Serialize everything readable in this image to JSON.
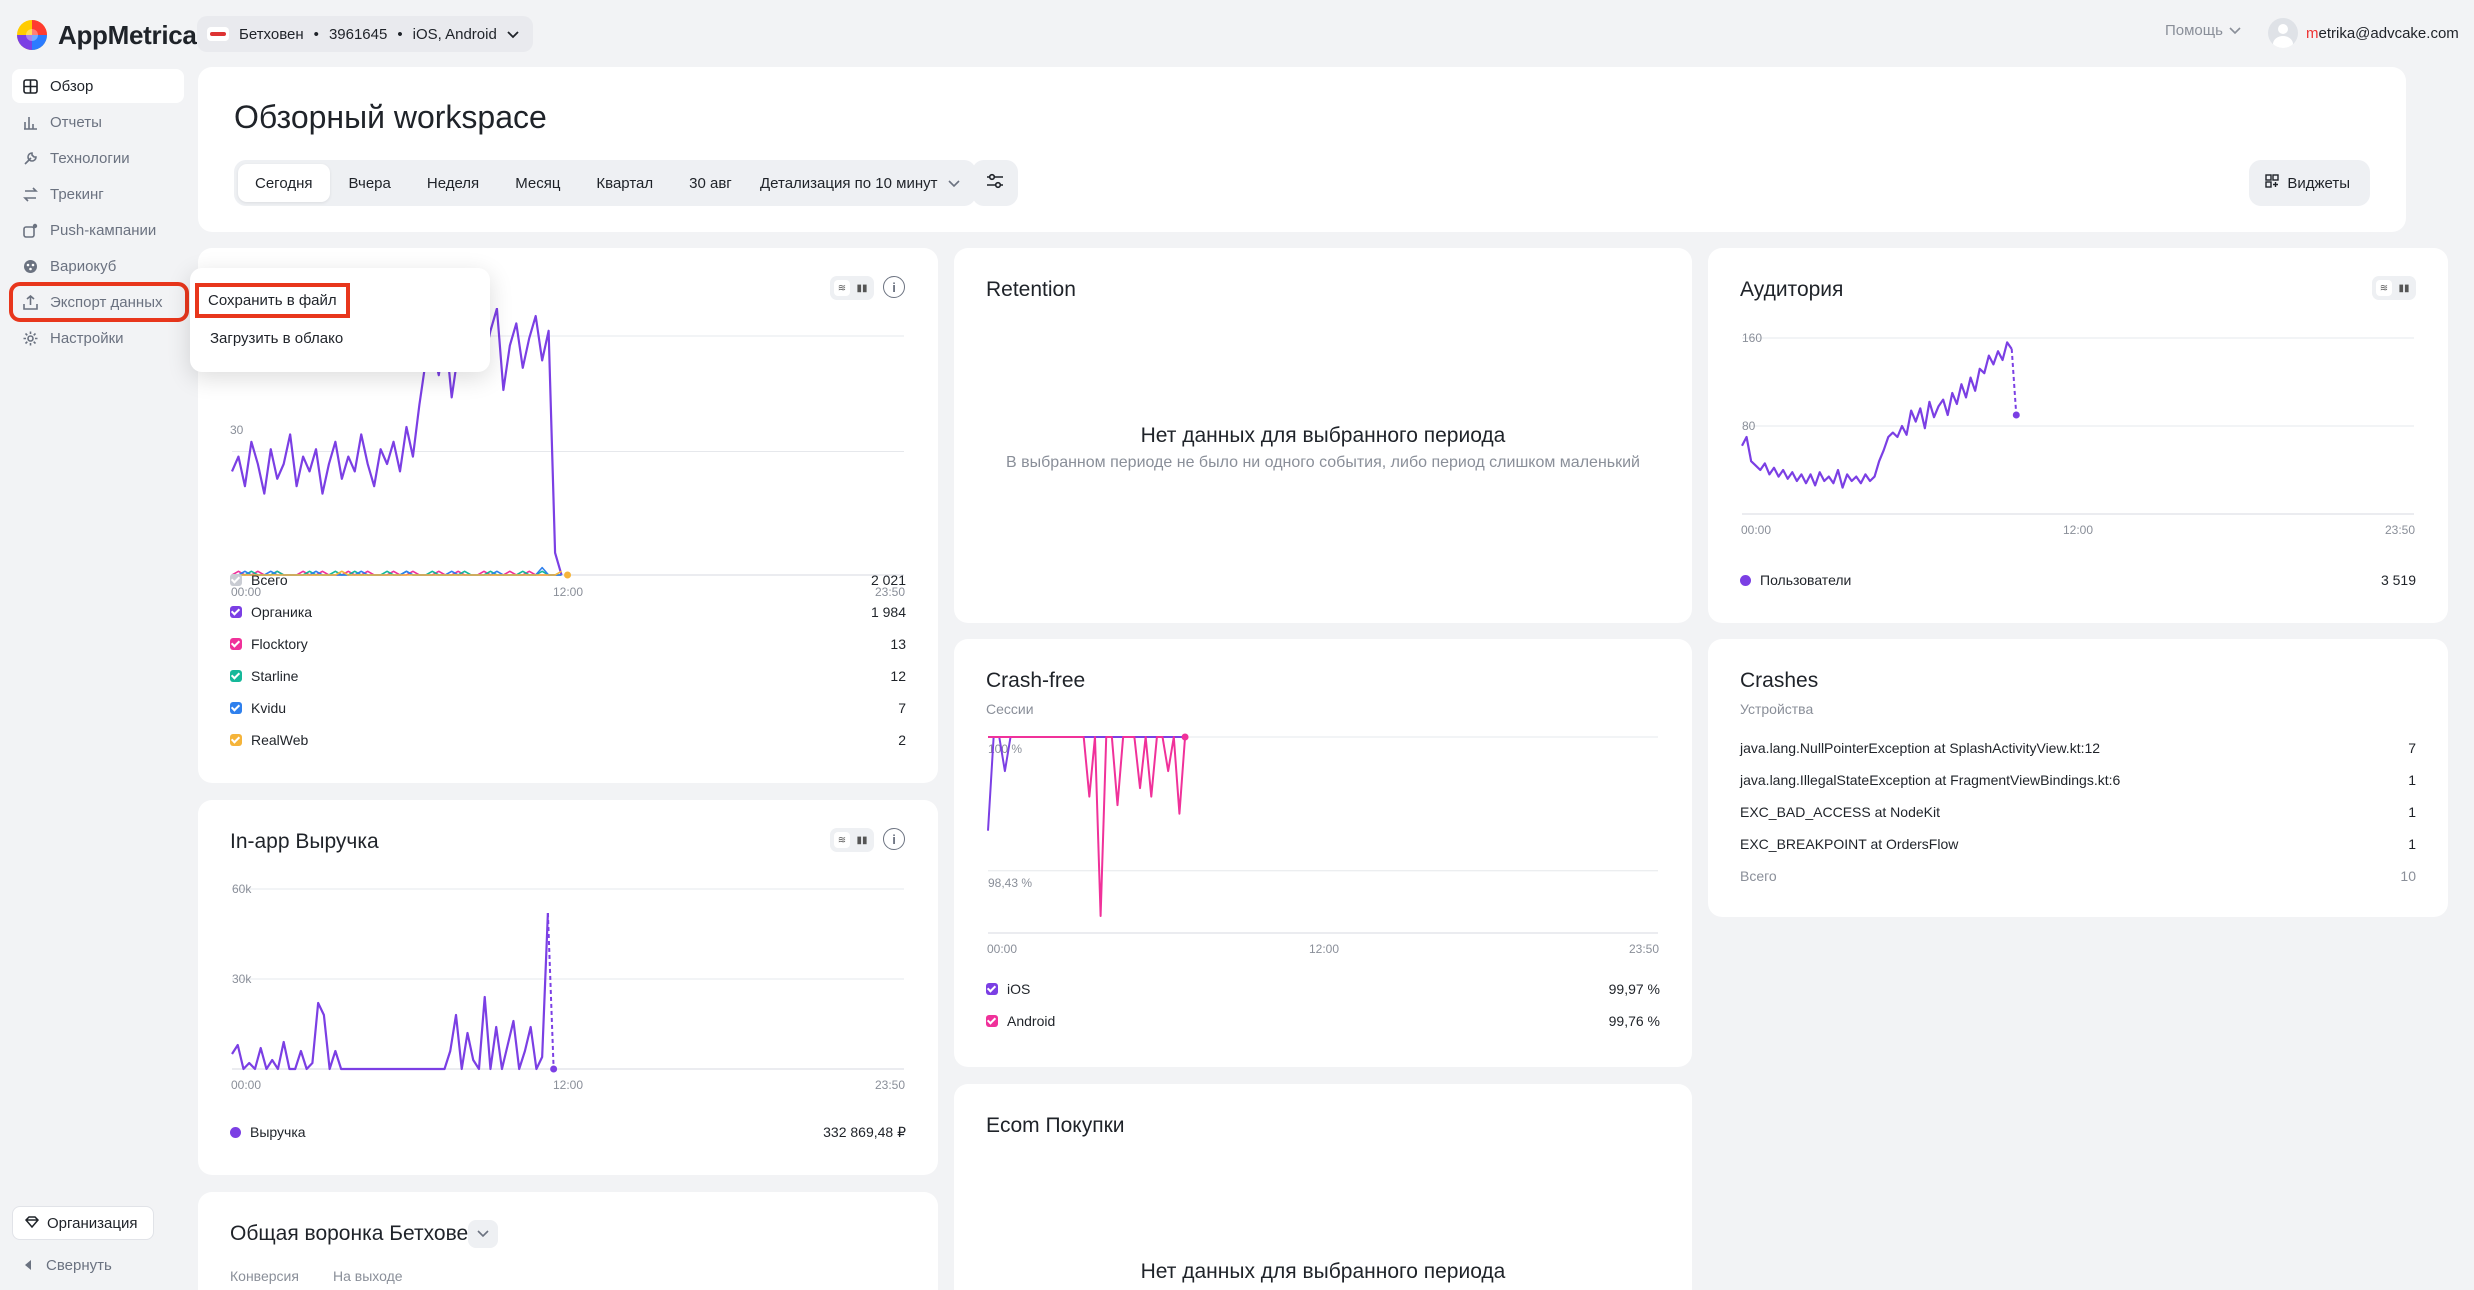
{
  "app": {
    "logo_text": "AppMetrica",
    "app_name": "Бетховен",
    "app_id": "3961645",
    "platforms": "iOS, Android",
    "help_label": "Помощь",
    "user_email_first": "m",
    "user_email_rest": "etrika@advcake.com"
  },
  "sidebar": {
    "items": [
      {
        "label": "Обзор",
        "icon": "grid-icon"
      },
      {
        "label": "Отчеты",
        "icon": "bar-chart-icon"
      },
      {
        "label": "Технологии",
        "icon": "wrench-icon"
      },
      {
        "label": "Трекинг",
        "icon": "arrows-icon"
      },
      {
        "label": "Push-кампании",
        "icon": "push-icon"
      },
      {
        "label": "Вариокуб",
        "icon": "cube-icon"
      },
      {
        "label": "Экспорт данных",
        "icon": "export-icon"
      },
      {
        "label": "Настройки",
        "icon": "gear-icon"
      }
    ],
    "org_label": "Организация",
    "collapse_label": "Свернуть"
  },
  "export_menu": {
    "save_file": "Сохранить в файл",
    "load_cloud": "Загрузить в облако"
  },
  "header": {
    "title": "Обзорный workspace",
    "periods": [
      "Сегодня",
      "Вчера",
      "Неделя",
      "Месяц",
      "Квартал",
      "30 авг"
    ],
    "selected_period": "Сегодня",
    "detail": "Детализация по 10 минут",
    "widgets_label": "Виджеты"
  },
  "installs_card": {
    "x_ticks": [
      "00:00",
      "12:00",
      "23:50"
    ],
    "y_tick": "30",
    "legend": [
      {
        "label": "Всего",
        "value": "2 021",
        "color": "#c9ccd3"
      },
      {
        "label": "Органика",
        "value": "1 984",
        "color": "#7b3fe4"
      },
      {
        "label": "Flocktory",
        "value": "13",
        "color": "#f0319a"
      },
      {
        "label": "Starline",
        "value": "12",
        "color": "#16b89a"
      },
      {
        "label": "Kvidu",
        "value": "7",
        "color": "#2f80ed"
      },
      {
        "label": "RealWeb",
        "value": "2",
        "color": "#f5b43a"
      }
    ]
  },
  "revenue_card": {
    "title": "In-app Выручка",
    "y_ticks": [
      "60k",
      "30k"
    ],
    "x_ticks": [
      "00:00",
      "12:00",
      "23:50"
    ],
    "legend_label": "Выручка",
    "legend_value": "332 869,48 ₽",
    "color": "#7b3fe4"
  },
  "funnel_card": {
    "title": "Общая воронка Бетховен",
    "col1": "Конверсия",
    "col2": "На выходе"
  },
  "retention_card": {
    "title": "Retention",
    "nodata_title": "Нет данных для выбранного периода",
    "nodata_sub": "В выбранном периоде не было ни одного события, либо период слишком маленький"
  },
  "crashfree_card": {
    "title": "Crash-free",
    "subtitle": "Сессии",
    "y_ticks": [
      "100 %",
      "98,43 %"
    ],
    "x_ticks": [
      "00:00",
      "12:00",
      "23:50"
    ],
    "legend": [
      {
        "label": "iOS",
        "value": "99,97 %",
        "color": "#7b3fe4"
      },
      {
        "label": "Android",
        "value": "99,76 %",
        "color": "#f0319a"
      }
    ]
  },
  "ecom_card": {
    "title": "Ecom Покупки",
    "nodata_title": "Нет данных для выбранного периода"
  },
  "audience_card": {
    "title": "Аудитория",
    "y_ticks": [
      "160",
      "80"
    ],
    "x_ticks": [
      "00:00",
      "12:00",
      "23:50"
    ],
    "legend_label": "Пользователи",
    "legend_value": "3 519",
    "color": "#7b3fe4"
  },
  "crashes_card": {
    "title": "Crashes",
    "subtitle": "Устройства",
    "rows": [
      {
        "label": "java.lang.NullPointerException at SplashActivityView.kt:12",
        "value": "7"
      },
      {
        "label": "java.lang.IllegalStateException at FragmentViewBindings.kt:6",
        "value": "1"
      },
      {
        "label": "EXC_BAD_ACCESS at NodeKit",
        "value": "1"
      },
      {
        "label": "EXC_BREAKPOINT at OrdersFlow",
        "value": "1"
      }
    ],
    "total_label": "Всего",
    "total_value": "10"
  },
  "chart_data": [
    {
      "type": "line",
      "title": "",
      "x_ticks": [
        "00:00",
        "12:00",
        "23:50"
      ],
      "series": [
        {
          "name": "Органика",
          "values": [
            28,
            32,
            24,
            36,
            30,
            22,
            34,
            26,
            30,
            38,
            24,
            32,
            28,
            34,
            22,
            30,
            36,
            26,
            32,
            28,
            38,
            30,
            24,
            34,
            30,
            36,
            28,
            40,
            32,
            46,
            58,
            62,
            54,
            66,
            48,
            60,
            56,
            70,
            64,
            58,
            66,
            72,
            50,
            62,
            68,
            56,
            64,
            70,
            58,
            66,
            6,
            0
          ]
        },
        {
          "name": "Flocktory",
          "values": [
            0,
            1,
            0,
            0,
            1,
            0,
            0,
            1,
            0,
            0,
            0,
            1,
            0,
            0,
            1,
            0,
            0,
            0,
            1,
            0,
            0,
            1,
            0,
            0,
            0,
            1,
            0,
            0,
            1,
            0,
            0,
            0,
            1,
            0,
            0,
            1,
            0,
            0,
            0,
            1,
            0,
            0,
            0,
            1,
            0,
            0,
            1,
            0,
            0,
            0,
            0,
            0
          ]
        },
        {
          "name": "Starline",
          "values": [
            0,
            0,
            0,
            1,
            0,
            0,
            0,
            1,
            0,
            0,
            0,
            0,
            1,
            0,
            0,
            0,
            1,
            0,
            0,
            1,
            0,
            0,
            0,
            0,
            1,
            0,
            0,
            1,
            0,
            0,
            0,
            1,
            0,
            0,
            0,
            0,
            1,
            0,
            0,
            0,
            1,
            0,
            0,
            0,
            0,
            1,
            0,
            0,
            1,
            0,
            0,
            0
          ]
        },
        {
          "name": "Kvidu",
          "values": [
            0,
            0,
            1,
            0,
            0,
            0,
            1,
            0,
            0,
            0,
            0,
            0,
            0,
            1,
            0,
            0,
            0,
            0,
            0,
            0,
            1,
            0,
            0,
            0,
            0,
            0,
            0,
            1,
            0,
            0,
            0,
            0,
            0,
            0,
            1,
            0,
            0,
            0,
            0,
            0,
            0,
            1,
            0,
            0,
            0,
            0,
            0,
            0,
            2,
            0,
            0,
            0
          ]
        },
        {
          "name": "RealWeb",
          "values": [
            0,
            0,
            0,
            0,
            0,
            0,
            0,
            0,
            0,
            0,
            0,
            0,
            0,
            0,
            0,
            0,
            0,
            1,
            0,
            0,
            0,
            0,
            0,
            0,
            0,
            0,
            0,
            0,
            0,
            0,
            0,
            0,
            0,
            0,
            0,
            0,
            0,
            0,
            0,
            0,
            0,
            0,
            0,
            0,
            0,
            0,
            0,
            0,
            0,
            0,
            0,
            1
          ]
        }
      ],
      "ylim": [
        0,
        70
      ]
    },
    {
      "type": "line",
      "title": "In-app Выручка",
      "x_ticks": [
        "00:00",
        "12:00",
        "23:50"
      ],
      "ylim": [
        0,
        60000
      ],
      "series": [
        {
          "name": "Выручка",
          "values": [
            5000,
            8000,
            0,
            2000,
            0,
            7000,
            0,
            3000,
            0,
            9000,
            0,
            0,
            6000,
            0,
            2000,
            22000,
            18000,
            0,
            6000,
            0,
            0,
            0,
            0,
            0,
            0,
            0,
            0,
            0,
            0,
            0,
            0,
            0,
            0,
            0,
            0,
            0,
            0,
            0,
            6000,
            18000,
            0,
            12000,
            3000,
            0,
            24000,
            0,
            14000,
            0,
            8000,
            16000,
            0,
            6000,
            14000,
            0,
            4000,
            52000,
            0
          ]
        }
      ]
    },
    {
      "type": "line",
      "title": "Crash-free",
      "x_ticks": [
        "00:00",
        "12:00",
        "23:50"
      ],
      "ylim": [
        97.7,
        100
      ],
      "series": [
        {
          "name": "iOS",
          "values": [
            98.9,
            100,
            100,
            99.6,
            100,
            100,
            100,
            100,
            100,
            100,
            100,
            100,
            100,
            100,
            100,
            100,
            100,
            100,
            100,
            100,
            100,
            100,
            100,
            100,
            100,
            100,
            100,
            100,
            100,
            100,
            100,
            100,
            100,
            100,
            100,
            100
          ]
        },
        {
          "name": "Android",
          "values": [
            100,
            100,
            100,
            100,
            100,
            100,
            100,
            100,
            100,
            100,
            100,
            100,
            100,
            100,
            100,
            100,
            100,
            100,
            99.3,
            100,
            97.9,
            100,
            100,
            99.2,
            100,
            100,
            100,
            99.4,
            100,
            99.3,
            100,
            100,
            99.6,
            100,
            99.1,
            100
          ]
        }
      ]
    },
    {
      "type": "line",
      "title": "Аудитория",
      "x_ticks": [
        "00:00",
        "12:00",
        "23:50"
      ],
      "ylim": [
        0,
        160
      ],
      "series": [
        {
          "name": "Пользователи",
          "values": [
            62,
            70,
            48,
            44,
            40,
            46,
            36,
            42,
            34,
            40,
            32,
            38,
            30,
            36,
            28,
            36,
            26,
            38,
            30,
            34,
            28,
            40,
            24,
            36,
            30,
            34,
            28,
            36,
            30,
            34,
            48,
            58,
            70,
            74,
            70,
            80,
            72,
            94,
            84,
            96,
            78,
            102,
            88,
            98,
            104,
            90,
            110,
            100,
            118,
            106,
            124,
            112,
            132,
            128,
            144,
            136,
            148,
            140,
            156,
            150,
            90
          ]
        }
      ]
    }
  ]
}
